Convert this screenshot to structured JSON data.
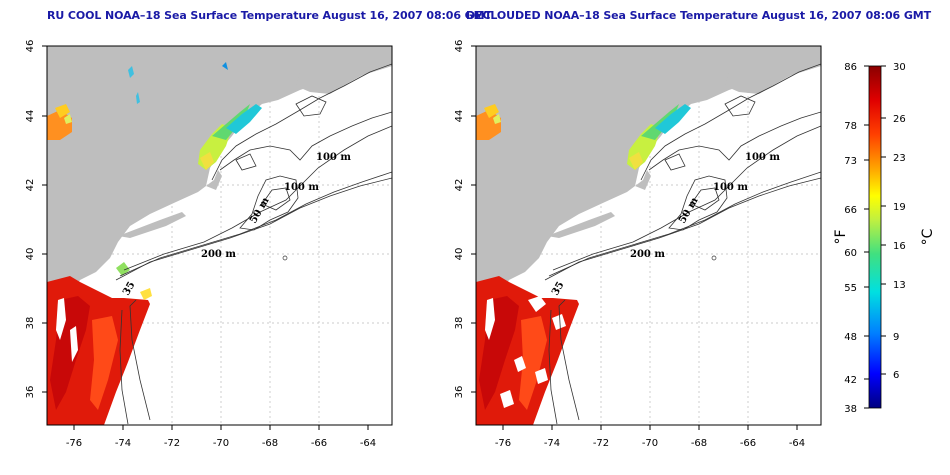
{
  "panels": [
    {
      "title": "RU COOL NOAA–18 Sea Surface Temperature August 16, 2007 08:06 GMT"
    },
    {
      "title": "DECLOUDED NOAA–18 Sea Surface Temperature August 16, 2007 08:06 GMT"
    }
  ],
  "map": {
    "lon_ticks": [
      "-76",
      "-74",
      "-72",
      "-70",
      "-68",
      "-66",
      "-64"
    ],
    "lat_ticks": [
      "36",
      "38",
      "40",
      "42",
      "44",
      "46"
    ],
    "lon_range": [
      -77,
      -63
    ],
    "lat_range": [
      35,
      46
    ],
    "land_color": "#bebebe",
    "grid": "dotted",
    "contour_labels": {
      "c100a": "100 m",
      "c100b": "100 m",
      "c50": "50 m",
      "c200": "200 m",
      "c35": "35"
    }
  },
  "colorbar": {
    "fahrenheit_ticks": [
      "86",
      "78",
      "73",
      "66",
      "60",
      "55",
      "48",
      "42",
      "38"
    ],
    "celsius_ticks": [
      "30",
      "26",
      "23",
      "19",
      "16",
      "13",
      "9",
      "6"
    ],
    "fahrenheit_unit": "°F",
    "celsius_unit": "°C",
    "range_c": [
      3.3,
      30
    ],
    "colors": [
      "#000080",
      "#0000ff",
      "#0080ff",
      "#00e0e0",
      "#40e080",
      "#c0f040",
      "#ffff00",
      "#ffa500",
      "#ff4000",
      "#e00000",
      "#8b0000"
    ]
  }
}
